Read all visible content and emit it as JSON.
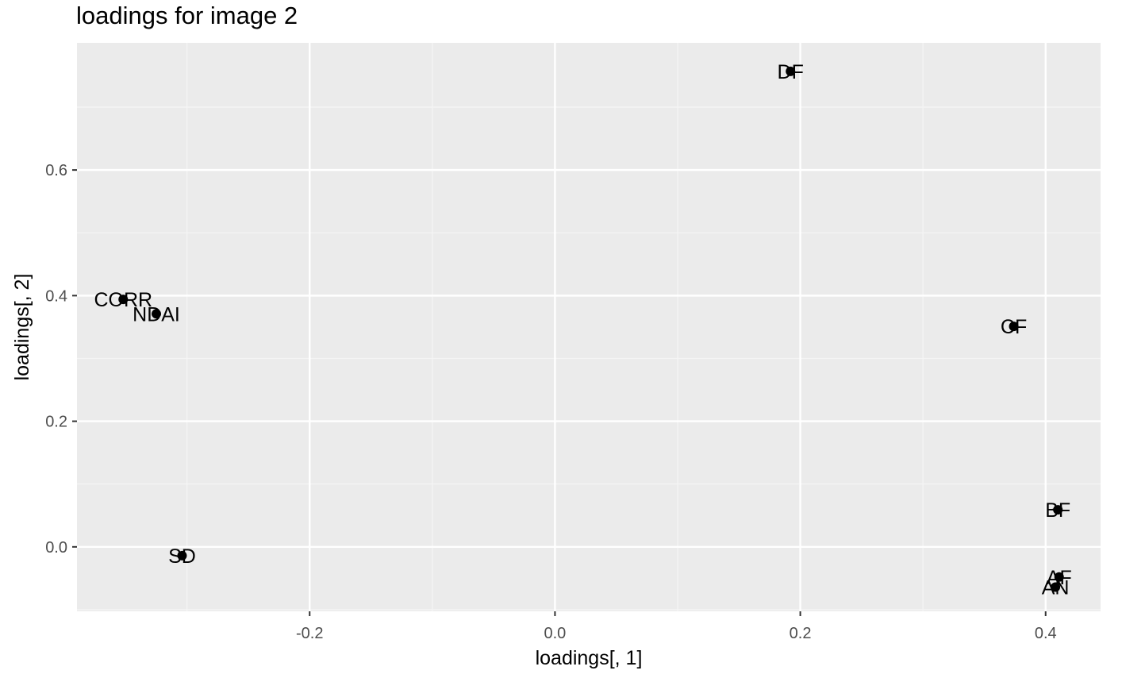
{
  "chart_data": {
    "type": "scatter",
    "title": "loadings for image 2",
    "xlabel": "loadings[, 1]",
    "ylabel": "loadings[, 2]",
    "xlim": [
      -0.3897,
      0.4448
    ],
    "ylim": [
      -0.1026,
      0.8024
    ],
    "x_ticks": [
      -0.2,
      0.0,
      0.2,
      0.4
    ],
    "x_tick_labels": [
      "-0.2",
      "0.0",
      "0.2",
      "0.4"
    ],
    "y_ticks": [
      0.0,
      0.2,
      0.4,
      0.6
    ],
    "y_tick_labels": [
      "0.0",
      "0.2",
      "0.4",
      "0.6"
    ],
    "grid": true,
    "points": [
      {
        "label": "DF",
        "x": 0.192,
        "y": 0.757
      },
      {
        "label": "CORR",
        "x": -0.352,
        "y": 0.394
      },
      {
        "label": "NDAI",
        "x": -0.325,
        "y": 0.371
      },
      {
        "label": "CF",
        "x": 0.374,
        "y": 0.351
      },
      {
        "label": "BF",
        "x": 0.41,
        "y": 0.059
      },
      {
        "label": "SD",
        "x": -0.304,
        "y": -0.014
      },
      {
        "label": "AF",
        "x": 0.411,
        "y": -0.048
      },
      {
        "label": "AN",
        "x": 0.408,
        "y": -0.064
      }
    ]
  }
}
